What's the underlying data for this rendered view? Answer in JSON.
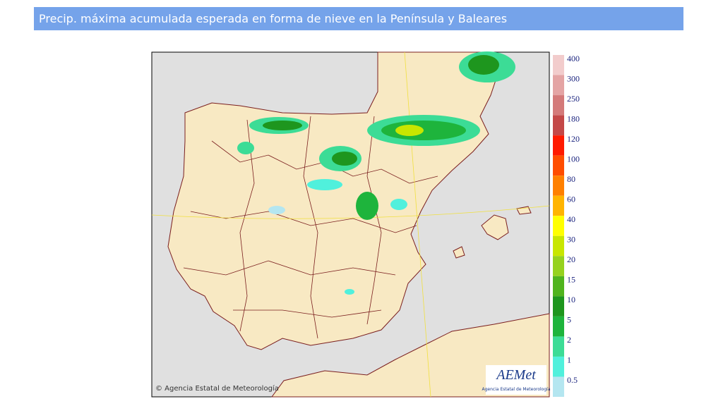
{
  "header": {
    "title": "Precip. máxima acumulada esperada en forma de nieve en la Península y Baleares"
  },
  "legend": {
    "items": [
      {
        "label": "400",
        "color": "#f2cccc"
      },
      {
        "label": "300",
        "color": "#e4a4a4"
      },
      {
        "label": "250",
        "color": "#d47a7a"
      },
      {
        "label": "180",
        "color": "#c44848"
      },
      {
        "label": "120",
        "color": "#ff1a00"
      },
      {
        "label": "100",
        "color": "#ff4d00"
      },
      {
        "label": "80",
        "color": "#ff8000"
      },
      {
        "label": "60",
        "color": "#ffb400"
      },
      {
        "label": "40",
        "color": "#ffff00"
      },
      {
        "label": "30",
        "color": "#c8e600"
      },
      {
        "label": "20",
        "color": "#96d21e"
      },
      {
        "label": "15",
        "color": "#50b41e"
      },
      {
        "label": "10",
        "color": "#1e961e"
      },
      {
        "label": "5",
        "color": "#1eb43c"
      },
      {
        "label": "2",
        "color": "#3cdc96"
      },
      {
        "label": "1",
        "color": "#50f0dc"
      },
      {
        "label": "0.5",
        "color": "#b4e6f0"
      }
    ]
  },
  "map": {
    "copyright": "© Agencia Estatal de Meteorología",
    "logo": "AEMet",
    "logo_caption": "Agencia Estatal de Meteorología"
  }
}
